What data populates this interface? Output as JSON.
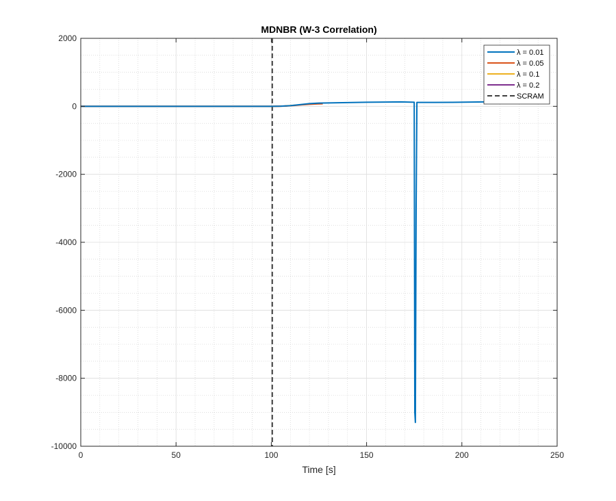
{
  "chart_data": {
    "type": "line",
    "title": "MDNBR (W-3 Correlation)",
    "xlabel": "Time [s]",
    "ylabel": "",
    "xlim": [
      0,
      250
    ],
    "ylim": [
      -10000,
      2000
    ],
    "xticks": [
      0,
      50,
      100,
      150,
      200,
      250
    ],
    "yticks": [
      -10000,
      -8000,
      -6000,
      -4000,
      -2000,
      0,
      2000
    ],
    "grid": true,
    "minor_grid": true,
    "legend_position": "top-right",
    "series": [
      {
        "name": "λ = 0.01",
        "color": "#0072BD",
        "points": [
          [
            0,
            0
          ],
          [
            100,
            0
          ],
          [
            105,
            5
          ],
          [
            110,
            20
          ],
          [
            115,
            50
          ],
          [
            120,
            80
          ],
          [
            125,
            95
          ],
          [
            130,
            100
          ],
          [
            140,
            110
          ],
          [
            150,
            120
          ],
          [
            160,
            125
          ],
          [
            168,
            130
          ],
          [
            175,
            120
          ],
          [
            175.3,
            -9000
          ],
          [
            175.6,
            -9300
          ],
          [
            176,
            -3000
          ],
          [
            176.4,
            115
          ],
          [
            185,
            115
          ],
          [
            195,
            118
          ],
          [
            205,
            125
          ],
          [
            212,
            130
          ]
        ]
      },
      {
        "name": "λ = 0.05",
        "color": "#D95319",
        "points": [
          [
            0,
            0
          ],
          [
            100,
            0
          ],
          [
            105,
            3
          ],
          [
            108,
            8
          ],
          [
            112,
            25
          ],
          [
            116,
            45
          ],
          [
            120,
            60
          ],
          [
            124,
            70
          ],
          [
            127,
            75
          ]
        ]
      },
      {
        "name": "λ = 0.1",
        "color": "#EDB120",
        "points": [
          [
            0,
            0
          ],
          [
            100,
            0
          ],
          [
            104,
            3
          ],
          [
            107,
            10
          ],
          [
            110,
            22
          ],
          [
            113,
            35
          ]
        ]
      },
      {
        "name": "λ = 0.2",
        "color": "#7E2F8E",
        "points": [
          [
            0,
            0
          ],
          [
            100,
            0
          ],
          [
            103,
            2
          ],
          [
            106,
            6
          ],
          [
            108,
            12
          ]
        ]
      },
      {
        "name": "SCRAM",
        "color": "#404040",
        "dashed": true,
        "vertical_x": 100.5
      }
    ]
  }
}
